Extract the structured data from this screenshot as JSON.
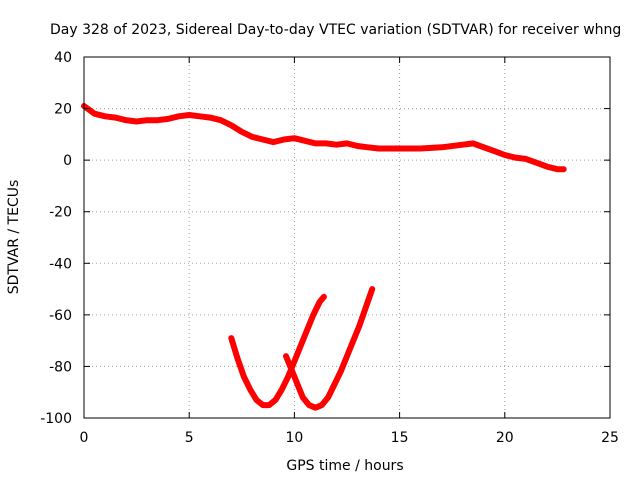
{
  "chart_data": {
    "type": "line",
    "title": "Day 328 of 2023, Sidereal Day-to-day VTEC variation (SDTVAR) for receiver whng",
    "xlabel": "GPS time / hours",
    "ylabel": "SDTVAR / TECUs",
    "xlim": [
      0,
      25
    ],
    "ylim": [
      -100,
      40
    ],
    "xticks": [
      0,
      5,
      10,
      15,
      20,
      25
    ],
    "yticks": [
      -100,
      -80,
      -60,
      -40,
      -20,
      0,
      20,
      40
    ],
    "grid": true,
    "line_color": "#ff0000",
    "series": [
      {
        "name": "main-trace",
        "points": [
          [
            0,
            21
          ],
          [
            0.5,
            18
          ],
          [
            1,
            17
          ],
          [
            1.5,
            16.5
          ],
          [
            2,
            15.5
          ],
          [
            2.5,
            15
          ],
          [
            3,
            15.5
          ],
          [
            3.5,
            15.5
          ],
          [
            4,
            16
          ],
          [
            4.5,
            17
          ],
          [
            5,
            17.5
          ],
          [
            5.5,
            17
          ],
          [
            6,
            16.5
          ],
          [
            6.5,
            15.5
          ],
          [
            7,
            13.5
          ],
          [
            7.5,
            11
          ],
          [
            8,
            9
          ],
          [
            8.5,
            8
          ],
          [
            9,
            7
          ],
          [
            9.5,
            8
          ],
          [
            10,
            8.5
          ],
          [
            10.5,
            7.5
          ],
          [
            11,
            6.5
          ],
          [
            11.5,
            6.5
          ],
          [
            12,
            6
          ],
          [
            12.5,
            6.5
          ],
          [
            13,
            5.5
          ],
          [
            13.5,
            5
          ],
          [
            14,
            4.5
          ],
          [
            15,
            4.5
          ],
          [
            16,
            4.5
          ],
          [
            17,
            5
          ],
          [
            18,
            6
          ],
          [
            18.5,
            6.5
          ],
          [
            19,
            5
          ],
          [
            19.5,
            3.5
          ],
          [
            20,
            2
          ],
          [
            20.5,
            1
          ],
          [
            21,
            0.5
          ],
          [
            21.5,
            -1
          ],
          [
            22,
            -2.5
          ],
          [
            22.5,
            -3.5
          ],
          [
            22.8,
            -3.5
          ]
        ]
      },
      {
        "name": "dip-trace-1",
        "points": [
          [
            7,
            -69
          ],
          [
            7.3,
            -77
          ],
          [
            7.6,
            -84
          ],
          [
            7.9,
            -89
          ],
          [
            8.2,
            -93
          ],
          [
            8.5,
            -95
          ],
          [
            8.8,
            -95
          ],
          [
            9.1,
            -93
          ],
          [
            9.4,
            -89
          ],
          [
            9.7,
            -84
          ],
          [
            10,
            -78
          ],
          [
            10.3,
            -72
          ],
          [
            10.6,
            -66
          ],
          [
            10.9,
            -60
          ],
          [
            11.2,
            -55
          ],
          [
            11.4,
            -53
          ]
        ]
      },
      {
        "name": "dip-trace-2",
        "points": [
          [
            9.6,
            -76
          ],
          [
            9.8,
            -80
          ],
          [
            10,
            -84
          ],
          [
            10.2,
            -88
          ],
          [
            10.4,
            -92
          ],
          [
            10.7,
            -95
          ],
          [
            11,
            -96
          ],
          [
            11.3,
            -95
          ],
          [
            11.6,
            -92
          ],
          [
            11.9,
            -87
          ],
          [
            12.2,
            -82
          ],
          [
            12.5,
            -76
          ],
          [
            12.8,
            -70
          ],
          [
            13.1,
            -64
          ],
          [
            13.4,
            -57
          ],
          [
            13.7,
            -50
          ]
        ]
      }
    ]
  }
}
